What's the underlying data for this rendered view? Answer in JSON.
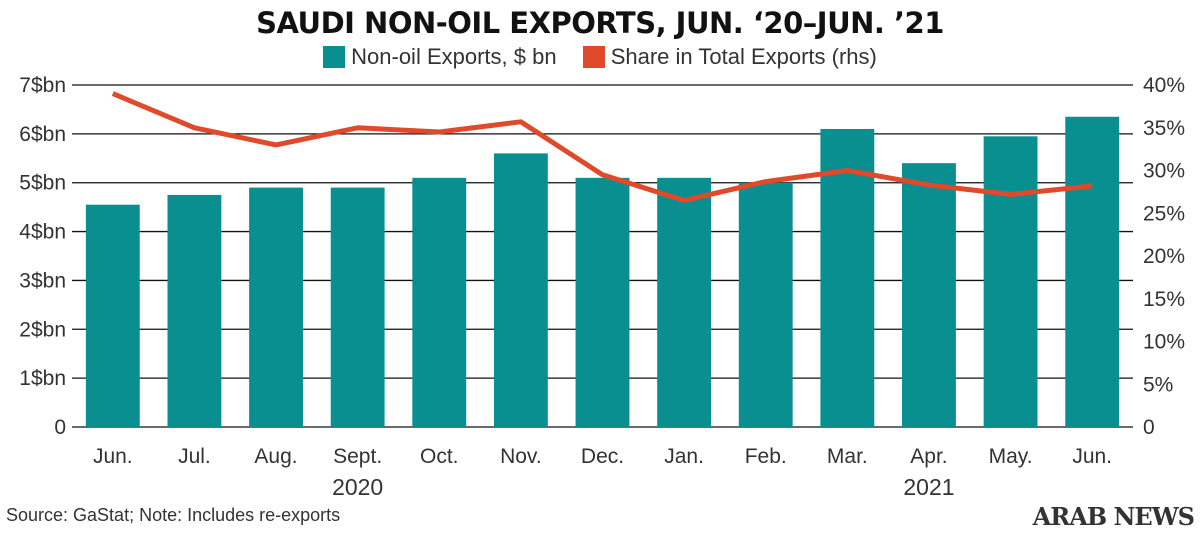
{
  "chart_data": {
    "type": "bar+line",
    "title": "SAUDI NON-OIL EXPORTS, JUN. ‘20–JUN. ’21",
    "categories": [
      "Jun.",
      "Jul.",
      "Aug.",
      "Sept.",
      "Oct.",
      "Nov.",
      "Dec.",
      "Jan.",
      "Feb.",
      "Mar.",
      "Apr.",
      "May.",
      "Jun."
    ],
    "year_labels": [
      {
        "label": "2020",
        "category_index": 3
      },
      {
        "label": "2021",
        "category_index": 10
      }
    ],
    "series": [
      {
        "name": "Non-oil Exports, $ bn",
        "type": "bar",
        "axis": "left",
        "color": "#0a8f91",
        "values": [
          4.55,
          4.75,
          4.9,
          4.9,
          5.1,
          5.6,
          5.1,
          5.1,
          5.0,
          6.1,
          5.4,
          5.95,
          6.35
        ]
      },
      {
        "name": "Share in Total Exports (rhs)",
        "type": "line",
        "axis": "right",
        "color": "#e0492a",
        "values": [
          39.0,
          35.0,
          33.0,
          35.0,
          34.5,
          35.7,
          29.5,
          26.5,
          28.7,
          30.0,
          28.3,
          27.2,
          28.2
        ]
      }
    ],
    "y_left": {
      "min": 0,
      "max": 7,
      "ticks": [
        0,
        1,
        2,
        3,
        4,
        5,
        6,
        7
      ],
      "tick_labels": [
        "0",
        "1$bn",
        "2$bn",
        "3$bn",
        "4$bn",
        "5$bn",
        "6$bn",
        "7$bn"
      ]
    },
    "y_right": {
      "min": 0,
      "max": 40,
      "ticks": [
        0,
        5,
        10,
        15,
        20,
        25,
        30,
        35,
        40
      ],
      "tick_labels": [
        "0",
        "5%",
        "10%",
        "15%",
        "20%",
        "25%",
        "30%",
        "35%",
        "40%"
      ]
    },
    "grid": true,
    "legend_position": "top-center"
  },
  "source_note": "Source: GaStat; Note: Includes re-exports",
  "brand": "ARAB NEWS"
}
